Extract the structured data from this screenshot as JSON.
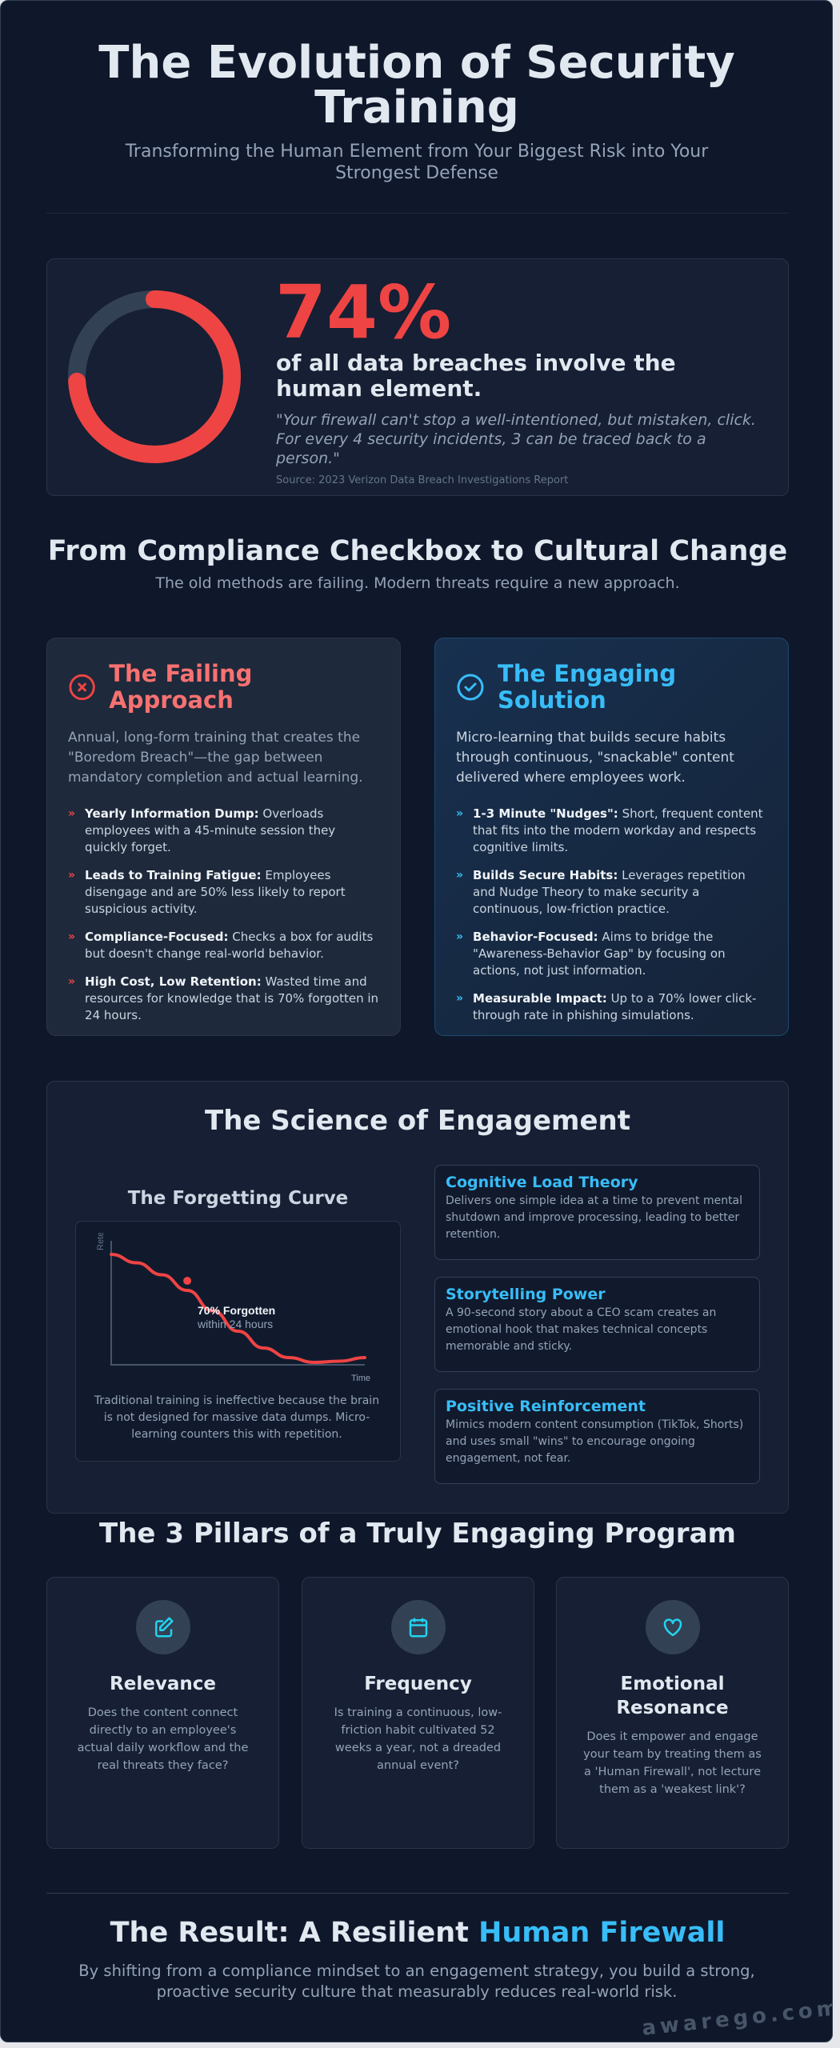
{
  "header": {
    "title": "The Evolution of Security Training",
    "subtitle": "Transforming the Human Element from Your Biggest Risk into Your Strongest Defense"
  },
  "stat": {
    "percent_label": "74%",
    "percent_value": 74,
    "text": "of all data breaches involve the human element.",
    "quote": "\"Your firewall can't stop a well-intentioned, but mistaken, click. For every 4 security incidents, 3 can be traced back to a person.\"",
    "source": "Source: 2023 Verizon Data Breach Investigations Report",
    "colors": {
      "fill": "#ef4444",
      "track": "#334155"
    }
  },
  "shift": {
    "title": "From Compliance Checkbox to Cultural Change",
    "subtitle": "The old methods are failing. Modern threats require a new approach."
  },
  "failing": {
    "icon": "x-circle-icon",
    "title": "The Failing Approach",
    "desc": "Annual, long-form training that creates the \"Boredom Breach\"—the gap between mandatory completion and actual learning.",
    "bullet": "»",
    "items": [
      {
        "label": "Yearly Information Dump:",
        "text": " Overloads employees with a 45-minute session they quickly forget."
      },
      {
        "label": "Leads to Training Fatigue:",
        "text": " Employees disengage and are 50% less likely to report suspicious activity."
      },
      {
        "label": "Compliance-Focused:",
        "text": " Checks a box for audits but doesn't change real-world behavior."
      },
      {
        "label": "High Cost, Low Retention:",
        "text": " Wasted time and resources for knowledge that is 70% forgotten in 24 hours."
      }
    ]
  },
  "engaging": {
    "icon": "check-circle-icon",
    "title": "The Engaging Solution",
    "desc": "Micro-learning that builds secure habits through continuous, \"snackable\" content delivered where employees work.",
    "bullet": "»",
    "items": [
      {
        "label": "1-3 Minute \"Nudges\":",
        "text": " Short, frequent content that fits into the modern workday and respects cognitive limits."
      },
      {
        "label": "Builds Secure Habits:",
        "text": " Leverages repetition and Nudge Theory to make security a continuous, low-friction practice."
      },
      {
        "label": "Behavior-Focused:",
        "text": " Aims to bridge the \"Awareness-Behavior Gap\" by focusing on actions, not just information."
      },
      {
        "label": "Measurable Impact:",
        "text": " Up to a 70% lower click-through rate in phishing simulations."
      }
    ]
  },
  "science": {
    "title": "The Science of Engagement",
    "curve_title": "The Forgetting Curve",
    "curve_caption": "Traditional training is ineffective because the brain is not designed for massive data dumps. Micro-learning counters this with repetition.",
    "boxes": [
      {
        "title": "Cognitive Load Theory",
        "text": "Delivers one simple idea at a time to prevent mental shutdown and improve processing, leading to better retention."
      },
      {
        "title": "Storytelling Power",
        "text": "A 90-second story about a CEO scam creates an emotional hook that makes technical concepts memorable and sticky."
      },
      {
        "title": "Positive Reinforcement",
        "text": "Mimics modern content consumption (TikTok, Shorts) and uses small \"wins\" to encourage ongoing engagement, not fear."
      }
    ]
  },
  "chart_data": {
    "type": "line",
    "xlabel": "Time",
    "ylabel": "Reten",
    "grid": false,
    "color": "#ef4444",
    "annotation": {
      "title": "70% Forgotten",
      "subtitle": "within 24 hours"
    },
    "series": [
      {
        "values": [
          0.92,
          0.85,
          0.75,
          0.62,
          0.45,
          0.28,
          0.14,
          0.06,
          0.02,
          0.03,
          0.06
        ]
      }
    ]
  },
  "pillars": {
    "title": "The 3 Pillars of a Truly Engaging Program",
    "items": [
      {
        "icon": "edit-icon",
        "title": "Relevance",
        "text": "Does the content connect directly to an employee's actual daily workflow and the real threats they face?"
      },
      {
        "icon": "calendar-icon",
        "title": "Frequency",
        "text": "Is training a continuous, low-friction habit cultivated 52 weeks a year, not a dreaded annual event?"
      },
      {
        "icon": "heart-icon",
        "title": "Emotional Resonance",
        "text": "Does it empower and engage your team by treating them as a 'Human Firewall', not lecture them as a 'weakest link'?"
      }
    ]
  },
  "result": {
    "title_prefix": "The Result: A Resilient ",
    "title_highlight": "Human Firewall",
    "text": "By shifting from a compliance mindset to an engagement strategy, you build a strong, proactive security culture that measurably reduces real-world risk."
  },
  "watermark": "awarego.com",
  "colors": {
    "bg": "#0f172a",
    "red": "#ef4444",
    "accent": "#38bdf8",
    "cyan": "#22d3ee"
  }
}
